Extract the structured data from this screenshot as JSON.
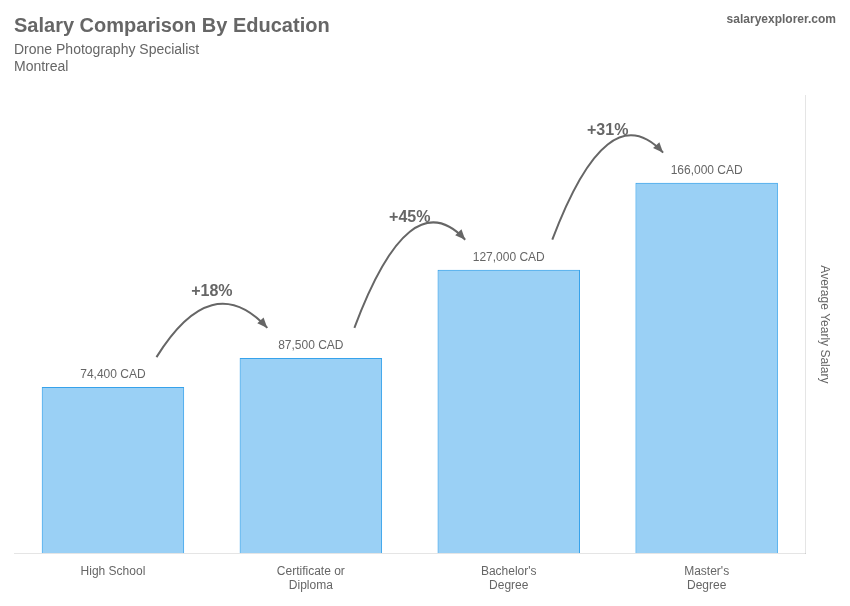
{
  "chart_data": {
    "type": "bar",
    "title": "Salary Comparison By Education",
    "subtitle": [
      "Drone Photography Specialist",
      "Montreal"
    ],
    "source": "salaryexplorer.com",
    "y_label": "Average Yearly Salary",
    "categories": [
      "High School",
      "Certificate or\nDiploma",
      "Bachelor's\nDegree",
      "Master's\nDegree"
    ],
    "values": [
      74400,
      87500,
      127000,
      166000
    ],
    "value_labels": [
      "74,400 CAD",
      "87,500 CAD",
      "127,000 CAD",
      "166,000 CAD"
    ],
    "data_labels": true,
    "annotations": [
      "+18%",
      "+45%",
      "+31%"
    ],
    "ylim": [
      0,
      205000
    ],
    "tick_labels": "x",
    "grid": false
  }
}
